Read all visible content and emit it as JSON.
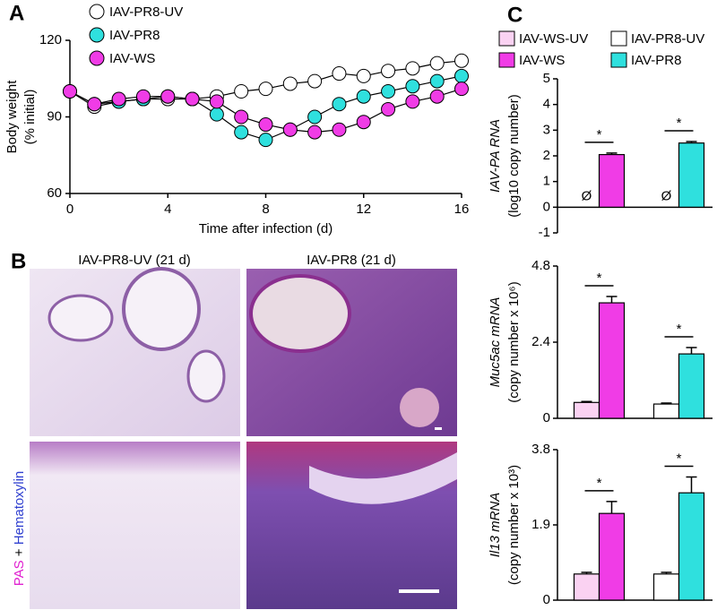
{
  "chart_data": [
    {
      "type": "line",
      "panel_label": "A",
      "ylabel": [
        "Body weight",
        "(% initial)"
      ],
      "xlabel": "Time after infection (d)",
      "x": [
        0,
        1,
        2,
        3,
        4,
        5,
        6,
        7,
        8,
        9,
        10,
        11,
        12,
        13,
        14,
        15,
        16
      ],
      "xlim": [
        0,
        16
      ],
      "xticks": [
        0,
        4,
        8,
        12,
        16
      ],
      "ylim": [
        60,
        120
      ],
      "yticks": [
        60,
        90,
        120
      ],
      "series": [
        {
          "name": "IAV-PR8-UV",
          "color": "#ffffff",
          "values": [
            100,
            94,
            96,
            97,
            97,
            97,
            98,
            100,
            101,
            103,
            104,
            107,
            106,
            108,
            109,
            111,
            112
          ]
        },
        {
          "name": "IAV-PR8",
          "color": "#2fe0de",
          "values": [
            100,
            95,
            96,
            97,
            98,
            97,
            91,
            84,
            81,
            85,
            90,
            95,
            98,
            100,
            102,
            104,
            106
          ]
        },
        {
          "name": "IAV-WS",
          "color": "#f03ce6",
          "values": [
            100,
            95,
            97,
            98,
            98,
            97,
            96,
            90,
            87,
            85,
            84,
            85,
            88,
            93,
            96,
            98,
            101
          ]
        }
      ]
    },
    {
      "type": "bar",
      "panel_label": "C",
      "ylabel": [
        "IAV-PA RNA",
        "(log10 copy number)"
      ],
      "categories": [
        null,
        null
      ],
      "ylim": [
        -1,
        5
      ],
      "yticks": [
        -1,
        0,
        1,
        2,
        3,
        4,
        5
      ],
      "annotations": [
        "*",
        "*"
      ],
      "nd_labels": [
        "Ø",
        "Ø"
      ],
      "series": [
        {
          "name": "IAV-WS-UV",
          "color": "#fad2f2",
          "values": [
            null,
            null
          ],
          "errors": [
            null,
            null
          ]
        },
        {
          "name": "IAV-WS",
          "color": "#f03ce6",
          "values": [
            2.05,
            null
          ],
          "errors": [
            0.06,
            null
          ]
        },
        {
          "name": "IAV-PR8-UV",
          "color": "#ffffff",
          "values": [
            null,
            null
          ],
          "errors": [
            null,
            null
          ]
        },
        {
          "name": "IAV-PR8",
          "color": "#2fe0de",
          "values": [
            null,
            2.5
          ],
          "errors": [
            null,
            0.06
          ]
        }
      ]
    },
    {
      "type": "bar",
      "ylabel": [
        "Muc5ac mRNA",
        "(copy number x 10⁶)"
      ],
      "categories": [
        null,
        null
      ],
      "ylim": [
        0,
        4.8
      ],
      "yticks": [
        0,
        2.4,
        4.8
      ],
      "annotations": [
        "*",
        "*"
      ],
      "series": [
        {
          "color": "#fad2f2",
          "values": [
            0.5,
            null
          ],
          "errors": [
            0.03,
            null
          ]
        },
        {
          "color": "#f03ce6",
          "values": [
            3.64,
            null
          ],
          "errors": [
            0.2,
            null
          ]
        },
        {
          "color": "#ffffff",
          "values": [
            null,
            0.45
          ],
          "errors": [
            null,
            0.03
          ]
        },
        {
          "color": "#2fe0de",
          "values": [
            null,
            2.03
          ],
          "errors": [
            null,
            0.2
          ]
        }
      ]
    },
    {
      "type": "bar",
      "ylabel": [
        "Il13 mRNA",
        "(copy number x 10³)"
      ],
      "categories": [
        null,
        null
      ],
      "ylim": [
        0,
        3.8
      ],
      "yticks": [
        0,
        1.9,
        3.8
      ],
      "annotations": [
        "*",
        "*"
      ],
      "series": [
        {
          "color": "#fad2f2",
          "values": [
            0.66,
            null
          ],
          "errors": [
            0.04,
            null
          ]
        },
        {
          "color": "#f03ce6",
          "values": [
            2.19,
            null
          ],
          "errors": [
            0.3,
            null
          ]
        },
        {
          "color": "#ffffff",
          "values": [
            null,
            0.66
          ],
          "errors": [
            null,
            0.04
          ]
        },
        {
          "color": "#2fe0de",
          "values": [
            null,
            2.71
          ],
          "errors": [
            null,
            0.4
          ]
        }
      ]
    }
  ],
  "panel_b": {
    "panel_label": "B",
    "left_title": "IAV-PR8-UV (21 d)",
    "right_title": "IAV-PR8 (21 d)",
    "stain_pas": "PAS",
    "stain_plus": "+",
    "stain_hematoxylin": "Hematoxylin"
  }
}
